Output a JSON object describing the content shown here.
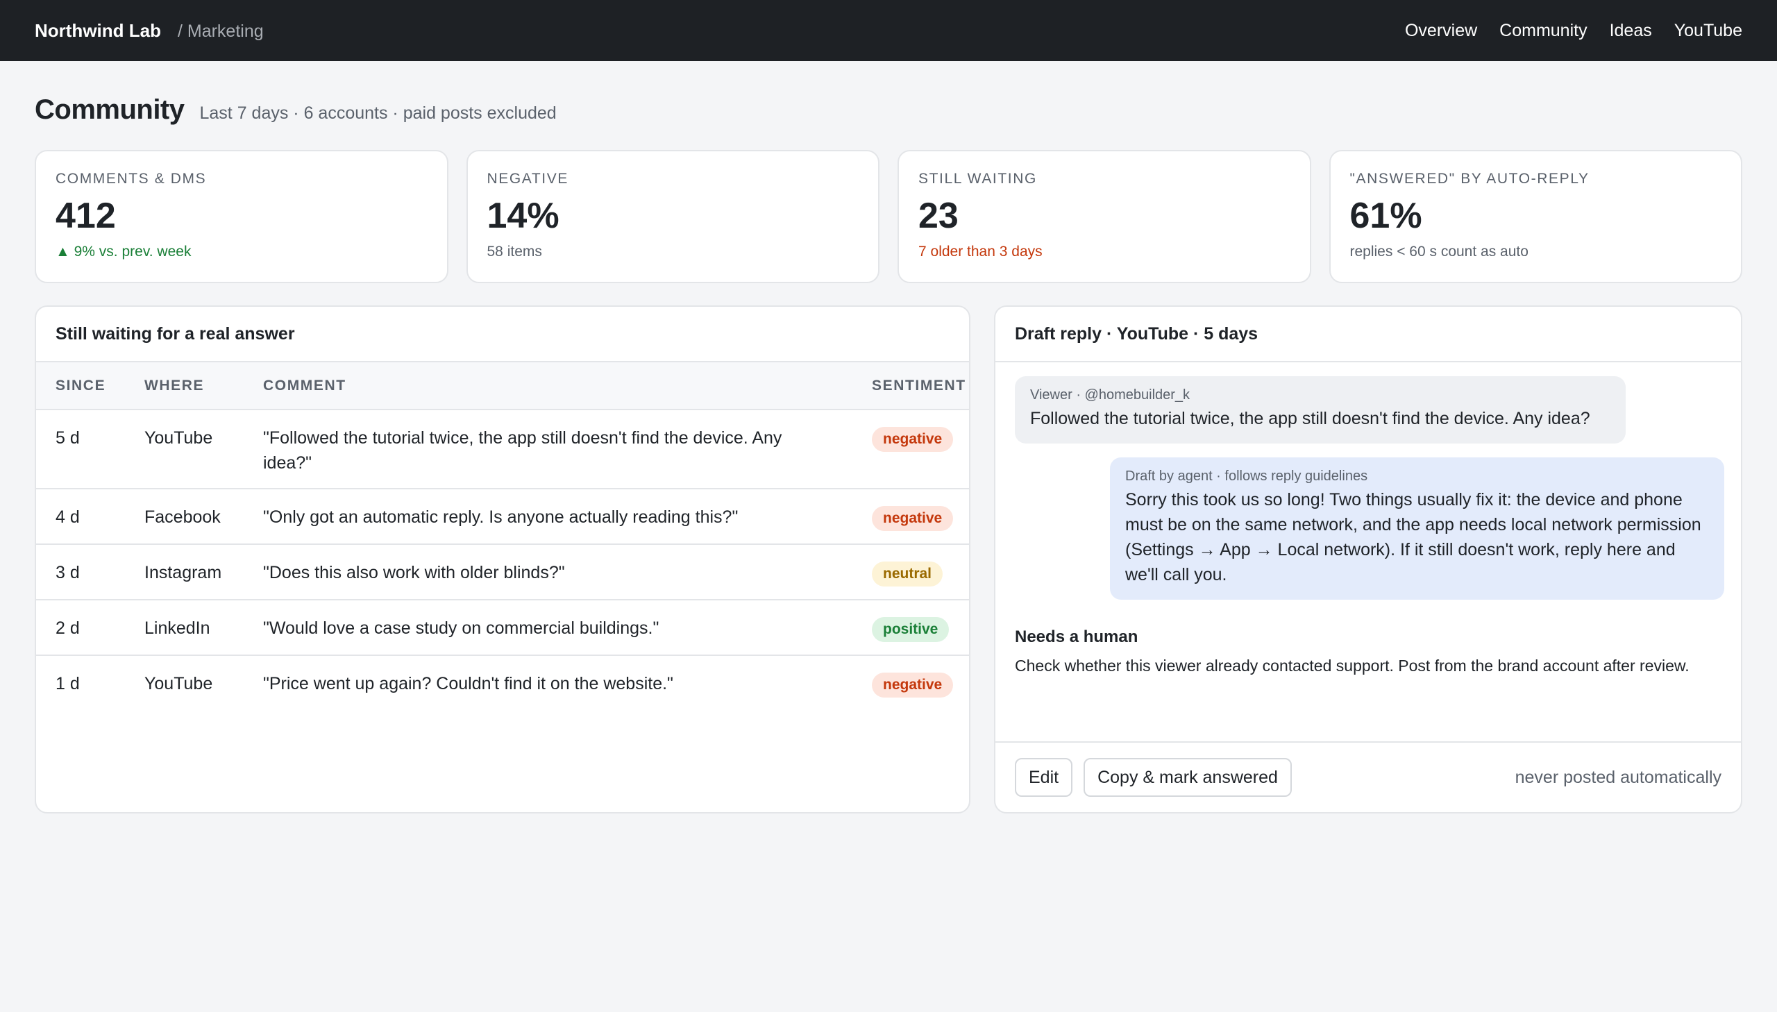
{
  "header": {
    "brand": "Northwind Lab",
    "section": "/ Marketing",
    "nav": [
      "Overview",
      "Community",
      "Ideas",
      "YouTube"
    ]
  },
  "page": {
    "title": "Community",
    "meta": "Last 7 days · 6 accounts · paid posts excluded"
  },
  "kpis": [
    {
      "label": "Comments & DMs",
      "value": "412",
      "note": "▲ 9% vs. prev. week",
      "tone": "up"
    },
    {
      "label": "Negative",
      "value": "14%",
      "note": "58 items",
      "tone": "muted"
    },
    {
      "label": "Still waiting",
      "value": "23",
      "note": "7 older than 3 days",
      "tone": "warn"
    },
    {
      "label": "\"Answered\" by auto-reply",
      "value": "61%",
      "note": "replies < 60 s count as auto",
      "tone": "muted"
    }
  ],
  "waiting": {
    "title": "Still waiting for a real answer",
    "columns": [
      "Since",
      "Where",
      "Comment",
      "Sentiment"
    ],
    "rows": [
      {
        "since": "5 d",
        "where": "YouTube",
        "comment": "\"Followed the tutorial twice, the app still doesn't find the device. Any idea?\"",
        "sentiment": "negative"
      },
      {
        "since": "4 d",
        "where": "Facebook",
        "comment": "\"Only got an automatic reply. Is anyone actually reading this?\"",
        "sentiment": "negative"
      },
      {
        "since": "3 d",
        "where": "Instagram",
        "comment": "\"Does this also work with older blinds?\"",
        "sentiment": "neutral"
      },
      {
        "since": "2 d",
        "where": "LinkedIn",
        "comment": "\"Would love a case study on commercial buildings.\"",
        "sentiment": "positive"
      },
      {
        "since": "1 d",
        "where": "YouTube",
        "comment": "\"Price went up again? Couldn't find it on the website.\"",
        "sentiment": "negative"
      }
    ]
  },
  "draft": {
    "title": "Draft reply · YouTube · 5 days",
    "incoming_meta": "Viewer · @homebuilder_k",
    "incoming_text": "Followed the tutorial twice, the app still doesn't find the device. Any idea?",
    "reply_meta": "Draft by agent · follows reply guidelines",
    "reply_text": "Sorry this took us so long! Two things usually fix it: the device and phone must be on the same network, and the app needs local network permission (Settings → App → Local network). If it still doesn't work, reply here and we'll call you.",
    "human_title": "Needs a human",
    "human_text": "Check whether this viewer already contacted support. Post from the brand account after review.",
    "edit_label": "Edit",
    "copy_label": "Copy & mark answered",
    "foot_note": "never posted automatically"
  }
}
